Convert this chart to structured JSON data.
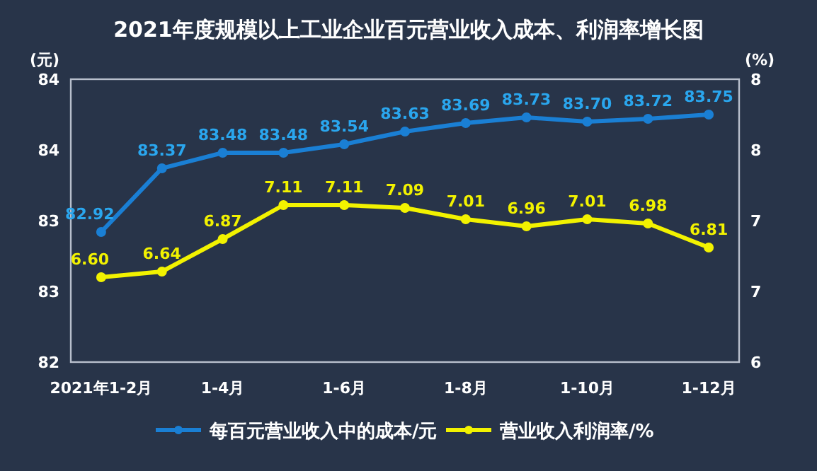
{
  "chart_data": {
    "type": "line",
    "title": "2021年度规模以上工业企业百元营业收入成本、利润率增长图",
    "ylabel": "(元)",
    "y2label": "(%)",
    "categories": [
      "2021年1-2月",
      null,
      "1-4月",
      null,
      "1-6月",
      null,
      "1-8月",
      null,
      "1-10月",
      null,
      "1-12月"
    ],
    "series": [
      {
        "name": "每百元营业收入中的成本/元",
        "color": "#1a7fd4",
        "values": [
          82.92,
          83.37,
          83.48,
          83.48,
          83.54,
          83.63,
          83.69,
          83.73,
          83.7,
          83.72,
          83.75
        ],
        "value_labels": [
          "82.92",
          "83.37",
          "83.48",
          "83.48",
          "83.54",
          "83.63",
          "83.69",
          "83.73",
          "83.70",
          "83.72",
          "83.75"
        ]
      },
      {
        "name": "营业收入利润率/%",
        "color": "#f2f200",
        "axis": "y2",
        "values": [
          6.6,
          6.64,
          6.87,
          7.11,
          7.11,
          7.09,
          7.01,
          6.96,
          7.01,
          6.98,
          6.81
        ],
        "value_labels": [
          "6.60",
          "6.64",
          "6.87",
          "7.11",
          "7.11",
          "7.09",
          "7.01",
          "6.96",
          "7.01",
          "6.98",
          "6.81"
        ]
      }
    ],
    "ylim": [
      82,
      84
    ],
    "yticks": [
      82,
      {
        "value": 82.5,
        "label": "83"
      },
      83,
      {
        "value": 83.5,
        "label": "84"
      },
      84
    ],
    "y2lim": [
      6,
      8
    ],
    "y2ticks": [
      6,
      {
        "value": 6.5,
        "label": "7"
      },
      7,
      {
        "value": 7.5,
        "label": "8"
      },
      8
    ],
    "marker": "circle",
    "line_style": "solid",
    "legend": "bottom",
    "grid": false
  }
}
